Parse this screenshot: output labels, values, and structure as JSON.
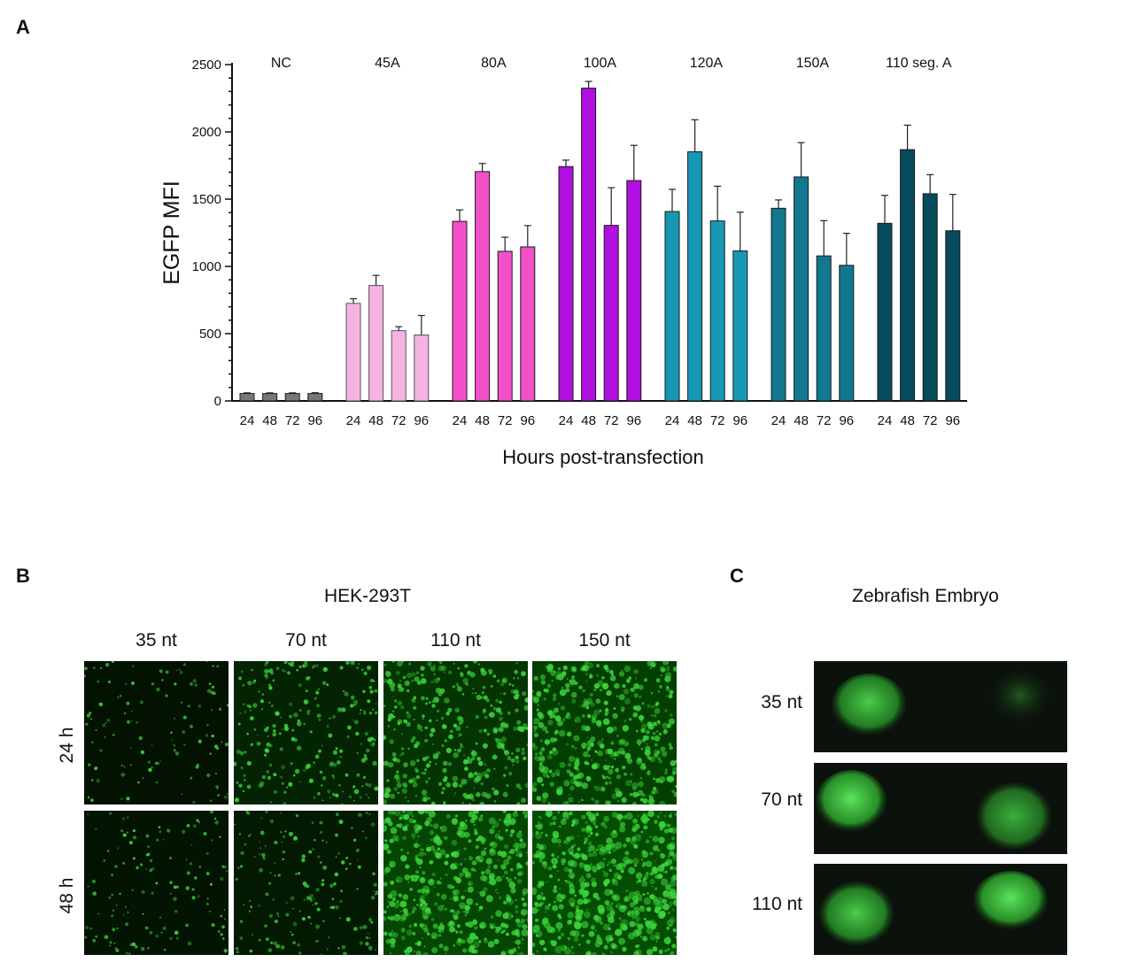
{
  "panel_a": {
    "letter": "A",
    "chart_data": {
      "type": "bar",
      "title": "",
      "ylabel": "EGFP MFI",
      "xlabel": "Hours post-transfection",
      "ylim": [
        0,
        2500
      ],
      "yticks": [
        0,
        500,
        1000,
        1500,
        2000,
        2500
      ],
      "grid": false,
      "hours": [
        "24",
        "48",
        "72",
        "96"
      ],
      "groups": [
        {
          "name": "NC",
          "color": "#777777",
          "values": [
            55,
            55,
            55,
            55
          ],
          "errors": [
            5,
            5,
            5,
            6
          ],
          "hollow": false
        },
        {
          "name": "45A",
          "color": "#f5b3e2",
          "values": [
            725,
            858,
            522,
            490
          ],
          "errors": [
            35,
            75,
            30,
            145
          ],
          "hollow": true
        },
        {
          "name": "80A",
          "color": "#f250c8",
          "values": [
            1335,
            1705,
            1112,
            1145
          ],
          "errors": [
            85,
            60,
            105,
            158
          ],
          "hollow": false
        },
        {
          "name": "100A",
          "color": "#b010e0",
          "values": [
            1742,
            2325,
            1305,
            1638
          ],
          "errors": [
            48,
            50,
            280,
            262
          ],
          "hollow": false
        },
        {
          "name": "120A",
          "color": "#1698b2",
          "values": [
            1408,
            1852,
            1338,
            1115
          ],
          "errors": [
            165,
            238,
            258,
            288
          ],
          "hollow": false
        },
        {
          "name": "150A",
          "color": "#11788f",
          "values": [
            1432,
            1665,
            1078,
            1008
          ],
          "errors": [
            62,
            255,
            262,
            238
          ],
          "hollow": false
        },
        {
          "name": "110 seg. A",
          "color": "#074a5c",
          "values": [
            1320,
            1868,
            1540,
            1265
          ],
          "errors": [
            208,
            182,
            142,
            270
          ],
          "hollow": false
        }
      ]
    }
  },
  "panel_b": {
    "letter": "B",
    "title": "HEK-293T",
    "columns": [
      "35 nt",
      "70 nt",
      "110 nt",
      "150 nt"
    ],
    "rows": [
      "24 h",
      "48 h"
    ],
    "intensity": [
      [
        0.12,
        0.35,
        0.6,
        0.75
      ],
      [
        0.14,
        0.22,
        0.85,
        0.95
      ]
    ]
  },
  "panel_c": {
    "letter": "C",
    "title": "Zebrafish Embryo",
    "rows": [
      "35 nt",
      "70 nt",
      "110 nt"
    ]
  },
  "colors": {
    "fluorescence": "#3cd63c",
    "axis": "#111111"
  }
}
